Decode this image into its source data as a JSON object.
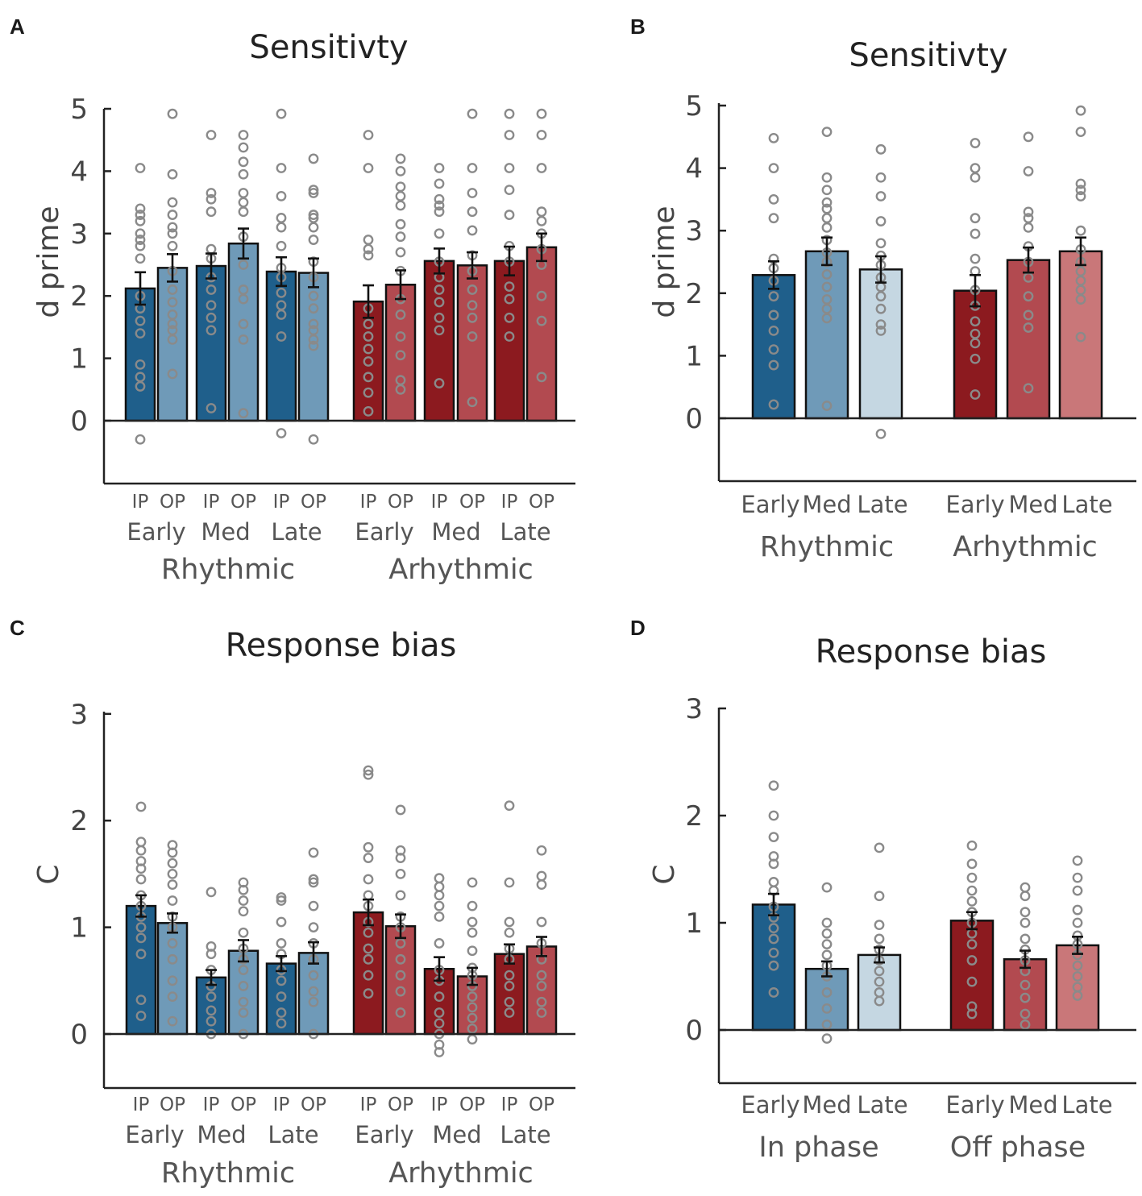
{
  "chart_data": [
    {
      "panel": "A",
      "type": "bar",
      "title": "Sensitivty",
      "ylabel": "d prime",
      "ylim": [
        -1,
        5
      ],
      "yticks": [
        0,
        1,
        2,
        3,
        4,
        5
      ],
      "sub_labels": [
        "IP",
        "OP"
      ],
      "conditions": [
        "Early",
        "Med",
        "Late"
      ],
      "groups": [
        "Rhythmic",
        "Arhythmic"
      ],
      "colors": [
        "#1f5f8b",
        "#6f9ab8",
        "#1f5f8b",
        "#6f9ab8",
        "#1f5f8b",
        "#6f9ab8",
        "#8c1a1f",
        "#b24a50",
        "#8c1a1f",
        "#b24a50",
        "#8c1a1f",
        "#b24a50"
      ],
      "values": [
        2.12,
        2.45,
        2.48,
        2.84,
        2.39,
        2.37,
        1.91,
        2.18,
        2.56,
        2.49,
        2.56,
        2.78
      ],
      "errors": [
        0.26,
        0.22,
        0.2,
        0.24,
        0.23,
        0.23,
        0.26,
        0.23,
        0.2,
        0.21,
        0.23,
        0.22
      ],
      "points": [
        [
          -0.3,
          0.55,
          0.7,
          0.9,
          1.4,
          1.6,
          1.8,
          2.0,
          2.6,
          2.8,
          2.9,
          3.0,
          3.2,
          3.3,
          3.4,
          4.05
        ],
        [
          0.75,
          1.3,
          1.45,
          1.55,
          1.7,
          1.9,
          2.1,
          2.4,
          2.8,
          3.0,
          3.1,
          3.3,
          3.5,
          3.95,
          4.92
        ],
        [
          0.2,
          1.45,
          1.65,
          1.85,
          2.1,
          2.3,
          2.6,
          2.75,
          3.35,
          3.55,
          3.65,
          4.58
        ],
        [
          0.12,
          1.3,
          1.55,
          1.95,
          2.1,
          2.5,
          2.95,
          3.35,
          3.5,
          3.65,
          3.95,
          4.15,
          4.38,
          4.58
        ],
        [
          -0.2,
          1.35,
          1.7,
          1.85,
          2.05,
          2.3,
          2.45,
          2.8,
          3.1,
          3.25,
          3.6,
          4.05,
          4.92
        ],
        [
          -0.3,
          1.2,
          1.3,
          1.45,
          1.55,
          1.8,
          2.0,
          2.3,
          2.55,
          2.9,
          3.1,
          3.25,
          3.3,
          3.65,
          3.7,
          4.2
        ],
        [
          0.15,
          0.45,
          0.7,
          0.95,
          1.15,
          1.35,
          1.55,
          1.8,
          2.65,
          2.75,
          2.9,
          4.05,
          4.58
        ],
        [
          0.5,
          0.65,
          1.05,
          1.35,
          1.7,
          1.95,
          2.4,
          2.7,
          2.95,
          3.15,
          3.45,
          3.6,
          3.75,
          4.0,
          4.2
        ],
        [
          0.6,
          1.45,
          1.65,
          1.9,
          2.1,
          2.3,
          2.55,
          3.0,
          3.35,
          3.45,
          3.55,
          3.8,
          4.05
        ],
        [
          0.3,
          1.35,
          1.65,
          1.85,
          2.1,
          2.4,
          2.65,
          3.05,
          3.35,
          3.65,
          4.05,
          4.92
        ],
        [
          1.35,
          1.65,
          1.95,
          2.15,
          2.55,
          2.8,
          3.3,
          3.7,
          4.05,
          4.58,
          4.92
        ],
        [
          0.7,
          1.6,
          2.0,
          2.5,
          2.75,
          3.0,
          3.2,
          3.35,
          4.05,
          4.58,
          4.92
        ]
      ]
    },
    {
      "panel": "B",
      "type": "bar",
      "title": "Sensitivty",
      "ylabel": "d prime",
      "ylim": [
        -1,
        5
      ],
      "yticks": [
        0,
        1,
        2,
        3,
        4,
        5
      ],
      "conditions": [
        "Early",
        "Med",
        "Late"
      ],
      "groups": [
        "Rhythmic",
        "Arhythmic"
      ],
      "colors": [
        "#1f5f8b",
        "#6f9ab8",
        "#c5d7e2",
        "#8c1a1f",
        "#b24a50",
        "#c97779"
      ],
      "values": [
        2.29,
        2.67,
        2.38,
        2.04,
        2.53,
        2.67
      ],
      "errors": [
        0.22,
        0.22,
        0.21,
        0.25,
        0.2,
        0.22
      ],
      "points": [
        [
          0.22,
          0.85,
          1.1,
          1.4,
          1.65,
          1.95,
          2.2,
          2.4,
          2.55,
          3.2,
          3.5,
          4.0,
          4.48
        ],
        [
          0.2,
          1.6,
          1.75,
          1.9,
          2.1,
          2.3,
          2.5,
          2.65,
          2.85,
          3.05,
          3.2,
          3.35,
          3.45,
          3.65,
          3.85,
          4.58
        ],
        [
          -0.25,
          1.4,
          1.5,
          1.75,
          1.95,
          2.1,
          2.25,
          2.45,
          2.6,
          2.8,
          3.15,
          3.55,
          3.85,
          4.3
        ],
        [
          0.38,
          0.95,
          1.2,
          1.35,
          1.55,
          1.8,
          2.05,
          2.35,
          2.55,
          2.95,
          3.2,
          3.85,
          4.0,
          4.4
        ],
        [
          0.48,
          1.45,
          1.65,
          1.95,
          2.25,
          2.5,
          2.75,
          3.05,
          3.2,
          3.3,
          3.95,
          4.5
        ],
        [
          1.3,
          1.9,
          2.05,
          2.2,
          2.35,
          2.5,
          2.7,
          3.0,
          3.55,
          3.65,
          3.75,
          4.58,
          4.92
        ]
      ]
    },
    {
      "panel": "C",
      "type": "bar",
      "title": "Response bias",
      "ylabel": "C",
      "ylim": [
        -0.5,
        3
      ],
      "yticks": [
        0,
        1,
        2,
        3
      ],
      "sub_labels": [
        "IP",
        "OP"
      ],
      "conditions": [
        "Early",
        "Med",
        "Late"
      ],
      "groups": [
        "Rhythmic",
        "Arhythmic"
      ],
      "colors": [
        "#1f5f8b",
        "#6f9ab8",
        "#1f5f8b",
        "#6f9ab8",
        "#1f5f8b",
        "#6f9ab8",
        "#8c1a1f",
        "#b24a50",
        "#8c1a1f",
        "#b24a50",
        "#8c1a1f",
        "#b24a50"
      ],
      "values": [
        1.2,
        1.04,
        0.53,
        0.78,
        0.66,
        0.76,
        1.14,
        1.01,
        0.61,
        0.54,
        0.75,
        0.82
      ],
      "errors": [
        0.1,
        0.09,
        0.07,
        0.1,
        0.07,
        0.1,
        0.12,
        0.11,
        0.11,
        0.08,
        0.09,
        0.09
      ],
      "points": [
        [
          0.17,
          0.32,
          0.75,
          0.9,
          1.0,
          1.1,
          1.2,
          1.3,
          1.45,
          1.55,
          1.62,
          1.72,
          1.8,
          2.13
        ],
        [
          0.12,
          0.35,
          0.5,
          0.7,
          0.85,
          1.0,
          1.1,
          1.25,
          1.4,
          1.5,
          1.6,
          1.7,
          1.77
        ],
        [
          0.0,
          0.12,
          0.22,
          0.35,
          0.45,
          0.6,
          0.75,
          0.82,
          1.33
        ],
        [
          0.0,
          0.2,
          0.3,
          0.45,
          0.6,
          0.7,
          0.8,
          0.95,
          1.15,
          1.25,
          1.35,
          1.42
        ],
        [
          0.1,
          0.2,
          0.35,
          0.5,
          0.6,
          0.75,
          0.85,
          1.05,
          1.25,
          1.28
        ],
        [
          0.0,
          0.3,
          0.4,
          0.55,
          0.7,
          0.85,
          1.0,
          1.2,
          1.42,
          1.45,
          1.7
        ],
        [
          0.38,
          0.55,
          0.7,
          0.8,
          0.95,
          1.05,
          1.2,
          1.3,
          1.45,
          1.65,
          1.75,
          2.43,
          2.47
        ],
        [
          0.2,
          0.4,
          0.55,
          0.7,
          0.85,
          1.0,
          1.1,
          1.3,
          1.5,
          1.65,
          1.72,
          2.1
        ],
        [
          -0.17,
          -0.1,
          0.0,
          0.1,
          0.2,
          0.35,
          0.5,
          0.6,
          0.85,
          1.1,
          1.2,
          1.3,
          1.38,
          1.46
        ],
        [
          -0.05,
          0.05,
          0.15,
          0.25,
          0.35,
          0.45,
          0.55,
          0.62,
          0.78,
          0.95,
          1.05,
          1.2,
          1.42
        ],
        [
          0.2,
          0.3,
          0.45,
          0.55,
          0.7,
          0.8,
          0.95,
          1.05,
          1.42,
          2.14
        ],
        [
          0.2,
          0.3,
          0.45,
          0.55,
          0.7,
          0.85,
          1.05,
          1.4,
          1.48,
          1.72
        ]
      ]
    },
    {
      "panel": "D",
      "type": "bar",
      "title": "Response bias",
      "ylabel": "C",
      "ylim": [
        -0.5,
        3
      ],
      "yticks": [
        0,
        1,
        2,
        3
      ],
      "conditions": [
        "Early",
        "Med",
        "Late"
      ],
      "groups": [
        "In phase",
        "Off phase"
      ],
      "colors": [
        "#1f5f8b",
        "#6f9ab8",
        "#c5d7e2",
        "#8c1a1f",
        "#b24a50",
        "#c97779"
      ],
      "values": [
        1.17,
        0.57,
        0.7,
        1.02,
        0.66,
        0.79
      ],
      "errors": [
        0.1,
        0.07,
        0.07,
        0.08,
        0.08,
        0.08
      ],
      "points": [
        [
          0.35,
          0.6,
          0.72,
          0.85,
          0.95,
          1.05,
          1.15,
          1.3,
          1.38,
          1.55,
          1.62,
          1.8,
          2.0,
          2.28
        ],
        [
          -0.08,
          0.05,
          0.2,
          0.35,
          0.5,
          0.6,
          0.7,
          0.8,
          0.9,
          1.0,
          1.33
        ],
        [
          0.27,
          0.35,
          0.45,
          0.55,
          0.65,
          0.75,
          0.85,
          0.98,
          1.25,
          1.7
        ],
        [
          0.15,
          0.22,
          0.45,
          0.65,
          0.8,
          0.9,
          1.0,
          1.1,
          1.2,
          1.3,
          1.42,
          1.55,
          1.72
        ],
        [
          0.05,
          0.15,
          0.3,
          0.42,
          0.55,
          0.65,
          0.75,
          0.85,
          1.0,
          1.1,
          1.25,
          1.33
        ],
        [
          0.32,
          0.4,
          0.5,
          0.6,
          0.7,
          0.8,
          0.88,
          1.0,
          1.12,
          1.3,
          1.42,
          1.58
        ]
      ]
    }
  ]
}
